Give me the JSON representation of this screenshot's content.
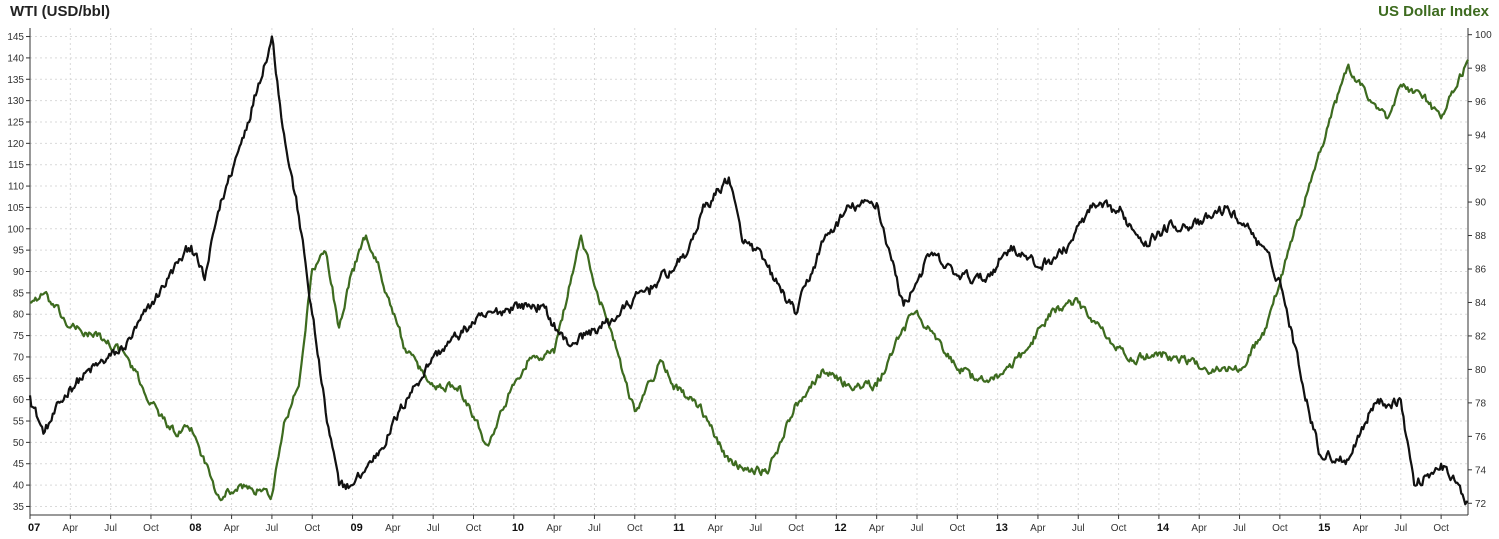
{
  "chart_data": {
    "type": "line",
    "title_left": "WTI (USD/bbl)",
    "title_right": "US Dollar Index",
    "colors": {
      "wti": "#111111",
      "dxy": "#3d6b1f",
      "grid": "#d9d9d9",
      "axis": "#333333"
    },
    "grid": true,
    "y_left": {
      "min": 33,
      "max": 147,
      "ticks": [
        35,
        40,
        45,
        50,
        55,
        60,
        65,
        70,
        75,
        80,
        85,
        90,
        95,
        100,
        105,
        110,
        115,
        120,
        125,
        130,
        135,
        140,
        145
      ]
    },
    "y_right": {
      "min": 71.3,
      "max": 100.4,
      "ticks": [
        72,
        74,
        76,
        78,
        80,
        82,
        84,
        86,
        88,
        90,
        92,
        94,
        96,
        98,
        100
      ]
    },
    "x_range": [
      "2007-01",
      "2015-12"
    ],
    "x_ticks": [
      {
        "label": "07",
        "year": true
      },
      {
        "label": "Apr"
      },
      {
        "label": "Jul"
      },
      {
        "label": "Oct"
      },
      {
        "label": "08",
        "year": true
      },
      {
        "label": "Apr"
      },
      {
        "label": "Jul"
      },
      {
        "label": "Oct"
      },
      {
        "label": "09",
        "year": true
      },
      {
        "label": "Apr"
      },
      {
        "label": "Jul"
      },
      {
        "label": "Oct"
      },
      {
        "label": "10",
        "year": true
      },
      {
        "label": "Apr"
      },
      {
        "label": "Jul"
      },
      {
        "label": "Oct"
      },
      {
        "label": "11",
        "year": true
      },
      {
        "label": "Apr"
      },
      {
        "label": "Jul"
      },
      {
        "label": "Oct"
      },
      {
        "label": "12",
        "year": true
      },
      {
        "label": "Apr"
      },
      {
        "label": "Jul"
      },
      {
        "label": "Oct"
      },
      {
        "label": "13",
        "year": true
      },
      {
        "label": "Apr"
      },
      {
        "label": "Jul"
      },
      {
        "label": "Oct"
      },
      {
        "label": "14",
        "year": true
      },
      {
        "label": "Apr"
      },
      {
        "label": "Jul"
      },
      {
        "label": "Oct"
      },
      {
        "label": "15",
        "year": true
      },
      {
        "label": "Apr"
      },
      {
        "label": "Jul"
      },
      {
        "label": "Oct"
      }
    ],
    "series": [
      {
        "name": "WTI (USD/bbl)",
        "axis": "left",
        "x": [
          "2007-01",
          "2007-02",
          "2007-04",
          "2007-06",
          "2007-08",
          "2007-10",
          "2007-12",
          "2008-01",
          "2008-02",
          "2008-03",
          "2008-05",
          "2008-06",
          "2008-07",
          "2008-08",
          "2008-09",
          "2008-10",
          "2008-11",
          "2008-12",
          "2009-01",
          "2009-03",
          "2009-05",
          "2009-07",
          "2009-10",
          "2010-01",
          "2010-03",
          "2010-05",
          "2010-08",
          "2010-11",
          "2011-01",
          "2011-02",
          "2011-03",
          "2011-05",
          "2011-06",
          "2011-07",
          "2011-10",
          "2011-12",
          "2012-02",
          "2012-04",
          "2012-06",
          "2012-08",
          "2012-10",
          "2012-12",
          "2013-02",
          "2013-04",
          "2013-06",
          "2013-08",
          "2013-10",
          "2013-12",
          "2014-02",
          "2014-04",
          "2014-06",
          "2014-08",
          "2014-10",
          "2014-12",
          "2015-01",
          "2015-03",
          "2015-05",
          "2015-07",
          "2015-08",
          "2015-10",
          "2015-12"
        ],
        "values": [
          61,
          52,
          63,
          68,
          72,
          82,
          92,
          96,
          88,
          104,
          123,
          134,
          145,
          120,
          103,
          80,
          57,
          40,
          40,
          48,
          60,
          70,
          78,
          82,
          82,
          73,
          78,
          86,
          91,
          95,
          104,
          112,
          97,
          95,
          80,
          97,
          105,
          106,
          82,
          94,
          89,
          88,
          96,
          91,
          95,
          105,
          104,
          97,
          101,
          101,
          105,
          99,
          88,
          60,
          47,
          46,
          59,
          60,
          40,
          45,
          36
        ]
      },
      {
        "name": "US Dollar Index",
        "axis": "right",
        "x": [
          "2007-01",
          "2007-02",
          "2007-04",
          "2007-06",
          "2007-08",
          "2007-10",
          "2007-12",
          "2008-01",
          "2008-03",
          "2008-05",
          "2008-07",
          "2008-08",
          "2008-09",
          "2008-10",
          "2008-11",
          "2008-12",
          "2009-01",
          "2009-02",
          "2009-03",
          "2009-05",
          "2009-07",
          "2009-09",
          "2009-11",
          "2009-12",
          "2010-02",
          "2010-04",
          "2010-06",
          "2010-07",
          "2010-08",
          "2010-10",
          "2010-12",
          "2011-01",
          "2011-03",
          "2011-05",
          "2011-07",
          "2011-08",
          "2011-10",
          "2011-12",
          "2012-02",
          "2012-04",
          "2012-06",
          "2012-07",
          "2012-09",
          "2012-11",
          "2013-01",
          "2013-03",
          "2013-05",
          "2013-07",
          "2013-09",
          "2013-11",
          "2014-01",
          "2014-03",
          "2014-05",
          "2014-07",
          "2014-09",
          "2014-11",
          "2015-01",
          "2015-03",
          "2015-04",
          "2015-06",
          "2015-07",
          "2015-09",
          "2015-10",
          "2015-12"
        ],
        "values": [
          84,
          84.5,
          82.5,
          82,
          81,
          78,
          76,
          76.5,
          72.5,
          73,
          72.5,
          77,
          79,
          86,
          87,
          82.5,
          86,
          88,
          86,
          81,
          79,
          79,
          75.5,
          77.5,
          80.5,
          81,
          88,
          85,
          83,
          77.5,
          80.5,
          79,
          77.5,
          74.5,
          74,
          74,
          78,
          80,
          79,
          79,
          82.5,
          83.5,
          81,
          79.5,
          79.5,
          81,
          83.5,
          84,
          82,
          80.5,
          81,
          80.5,
          80,
          80,
          82.5,
          88,
          93,
          98,
          97,
          95,
          97,
          96,
          95,
          98.5
        ]
      }
    ]
  }
}
